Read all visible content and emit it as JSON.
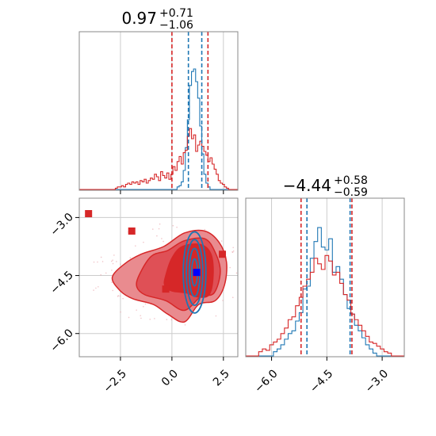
{
  "chart_data": [
    {
      "type": "histogram",
      "panel": "top-left marginal of parameter 1",
      "title": {
        "value": "0.97",
        "plus": "+0.71",
        "minus": "−1.06"
      },
      "xlim": [
        -4.5,
        3.2
      ],
      "grid": true,
      "x_ticks": [
        -2.5,
        0.0,
        2.5
      ],
      "series": [
        {
          "color": "#1f77b4",
          "quantile_lines": [
            0.8,
            1.45
          ],
          "bin_width": 0.1,
          "bins_x": [
            0.3,
            0.4,
            0.5,
            0.6,
            0.7,
            0.8,
            0.9,
            1.0,
            1.1,
            1.2,
            1.3,
            1.4,
            1.5,
            1.6,
            1.7,
            1.8
          ],
          "bins_y": [
            0.02,
            0.03,
            0.06,
            0.15,
            0.33,
            0.55,
            0.82,
            0.93,
            0.95,
            0.85,
            0.72,
            0.5,
            0.28,
            0.12,
            0.05,
            0.02
          ]
        },
        {
          "color": "#d62728",
          "quantile_lines": [
            0.0,
            1.75
          ],
          "bin_width": 0.1,
          "bins_x": [
            -2.7,
            -2.6,
            -2.5,
            -2.4,
            -2.3,
            -2.2,
            -2.1,
            -2.0,
            -1.9,
            -1.8,
            -1.7,
            -1.6,
            -1.5,
            -1.4,
            -1.3,
            -1.2,
            -1.1,
            -1.0,
            -0.9,
            -0.8,
            -0.7,
            -0.6,
            -0.5,
            -0.4,
            -0.3,
            -0.2,
            -0.1,
            0.0,
            0.1,
            0.2,
            0.3,
            0.4,
            0.5,
            0.6,
            0.7,
            0.8,
            0.9,
            1.0,
            1.1,
            1.2,
            1.3,
            1.4,
            1.5,
            1.6,
            1.7,
            1.8,
            1.9,
            2.0,
            2.1,
            2.2,
            2.3,
            2.4,
            2.5,
            2.6,
            2.7
          ],
          "bins_y": [
            0.01,
            0.02,
            0.02,
            0.03,
            0.02,
            0.04,
            0.05,
            0.04,
            0.06,
            0.05,
            0.06,
            0.04,
            0.07,
            0.06,
            0.08,
            0.05,
            0.07,
            0.09,
            0.08,
            0.12,
            0.1,
            0.07,
            0.14,
            0.11,
            0.09,
            0.13,
            0.08,
            0.12,
            0.18,
            0.15,
            0.22,
            0.26,
            0.2,
            0.29,
            0.31,
            0.42,
            0.48,
            0.4,
            0.43,
            0.3,
            0.35,
            0.38,
            0.34,
            0.3,
            0.27,
            0.22,
            0.25,
            0.2,
            0.16,
            0.12,
            0.07,
            0.05,
            0.04,
            0.02,
            0.01
          ]
        }
      ]
    },
    {
      "type": "histogram",
      "panel": "bottom-right marginal of parameter 2",
      "title": {
        "value": "−4.44",
        "plus": "+0.58",
        "minus": "−0.59"
      },
      "xlim": [
        -6.7,
        -2.4
      ],
      "grid": true,
      "x_ticks": [
        -6.0,
        -4.5,
        -3.0
      ],
      "series": [
        {
          "color": "#1f77b4",
          "quantile_lines": [
            -5.04,
            -3.87
          ],
          "bin_width": 0.1,
          "bins_x": [
            -5.9,
            -5.8,
            -5.7,
            -5.6,
            -5.5,
            -5.4,
            -5.3,
            -5.2,
            -5.1,
            -5.0,
            -4.9,
            -4.8,
            -4.7,
            -4.6,
            -4.5,
            -4.4,
            -4.3,
            -4.2,
            -4.1,
            -4.0,
            -3.9,
            -3.8,
            -3.7,
            -3.6,
            -3.5,
            -3.4,
            -3.3,
            -3.2
          ],
          "bins_y": [
            0.03,
            0.05,
            0.08,
            0.12,
            0.16,
            0.18,
            0.25,
            0.31,
            0.48,
            0.5,
            0.7,
            0.82,
            0.92,
            0.78,
            0.76,
            0.84,
            0.6,
            0.64,
            0.55,
            0.44,
            0.34,
            0.3,
            0.22,
            0.18,
            0.13,
            0.08,
            0.05,
            0.02
          ]
        },
        {
          "color": "#d62728",
          "quantile_lines": [
            -5.2,
            -3.82
          ],
          "bin_width": 0.1,
          "bins_x": [
            -6.3,
            -6.2,
            -6.1,
            -6.0,
            -5.9,
            -5.8,
            -5.7,
            -5.6,
            -5.5,
            -5.4,
            -5.3,
            -5.2,
            -5.1,
            -5.0,
            -4.9,
            -4.8,
            -4.7,
            -4.6,
            -4.5,
            -4.4,
            -4.3,
            -4.2,
            -4.1,
            -4.0,
            -3.9,
            -3.8,
            -3.7,
            -3.6,
            -3.5,
            -3.4,
            -3.3,
            -3.2,
            -3.1,
            -3.0,
            -2.9,
            -2.8
          ],
          "bins_y": [
            0.03,
            0.05,
            0.04,
            0.08,
            0.1,
            0.12,
            0.16,
            0.2,
            0.26,
            0.28,
            0.36,
            0.42,
            0.5,
            0.55,
            0.6,
            0.7,
            0.66,
            0.62,
            0.72,
            0.68,
            0.58,
            0.6,
            0.52,
            0.44,
            0.4,
            0.3,
            0.26,
            0.22,
            0.18,
            0.14,
            0.1,
            0.09,
            0.07,
            0.05,
            0.03,
            0.02
          ]
        }
      ]
    },
    {
      "type": "contour",
      "panel": "bottom-left joint of parameter 1 vs parameter 2",
      "xlim": [
        -4.5,
        3.2
      ],
      "ylim": [
        -6.6,
        -2.5
      ],
      "grid": true,
      "x_ticks": [
        -2.5,
        0.0,
        2.5
      ],
      "y_ticks": [
        -3.0,
        -4.5,
        -6.0
      ],
      "series": [
        {
          "color": "#d62728",
          "kind": "filled-contours",
          "outer": [
            [
              -2.9,
              -4.55
            ],
            [
              -2.3,
              -4.2
            ],
            [
              -1.5,
              -3.95
            ],
            [
              -0.4,
              -3.75
            ],
            [
              0.6,
              -3.4
            ],
            [
              1.6,
              -3.35
            ],
            [
              2.3,
              -3.65
            ],
            [
              2.65,
              -4.15
            ],
            [
              2.55,
              -4.75
            ],
            [
              2.1,
              -5.15
            ],
            [
              1.3,
              -5.25
            ],
            [
              0.6,
              -5.7
            ],
            [
              -0.2,
              -5.5
            ],
            [
              -0.9,
              -5.25
            ],
            [
              -1.9,
              -5.1
            ],
            [
              -2.5,
              -4.9
            ]
          ],
          "middle": [
            [
              -1.6,
              -4.5
            ],
            [
              -1.0,
              -4.0
            ],
            [
              -0.2,
              -3.85
            ],
            [
              0.6,
              -3.6
            ],
            [
              1.6,
              -3.55
            ],
            [
              2.1,
              -3.9
            ],
            [
              2.35,
              -4.4
            ],
            [
              2.05,
              -4.95
            ],
            [
              1.4,
              -5.05
            ],
            [
              0.6,
              -5.4
            ],
            [
              -0.3,
              -5.15
            ],
            [
              -1.3,
              -5.0
            ],
            [
              -1.7,
              -4.8
            ]
          ],
          "inner": [
            [
              -0.3,
              -4.5
            ],
            [
              0.0,
              -4.05
            ],
            [
              0.5,
              -3.75
            ],
            [
              1.4,
              -3.7
            ],
            [
              1.9,
              -3.95
            ],
            [
              2.0,
              -4.5
            ],
            [
              1.8,
              -5.0
            ],
            [
              1.2,
              -5.05
            ],
            [
              0.7,
              -4.95
            ],
            [
              0.0,
              -4.9
            ],
            [
              -0.35,
              -4.75
            ]
          ]
        },
        {
          "color": "#1f77b4",
          "kind": "line-contours",
          "center": [
            1.1,
            -4.42
          ],
          "radii_x": [
            0.55,
            0.4,
            0.26,
            0.14
          ],
          "radii_y": [
            1.05,
            0.85,
            0.62,
            0.35
          ]
        },
        {
          "color": "#d62728",
          "kind": "markers",
          "marker": "square",
          "points": [
            [
              -4.05,
              -2.9
            ],
            [
              -1.95,
              -3.35
            ],
            [
              2.45,
              -3.95
            ],
            [
              -0.3,
              -4.85
            ]
          ]
        },
        {
          "color": "#0000ff",
          "kind": "markers",
          "marker": "square",
          "points": [
            [
              1.2,
              -4.42
            ]
          ]
        }
      ]
    }
  ]
}
